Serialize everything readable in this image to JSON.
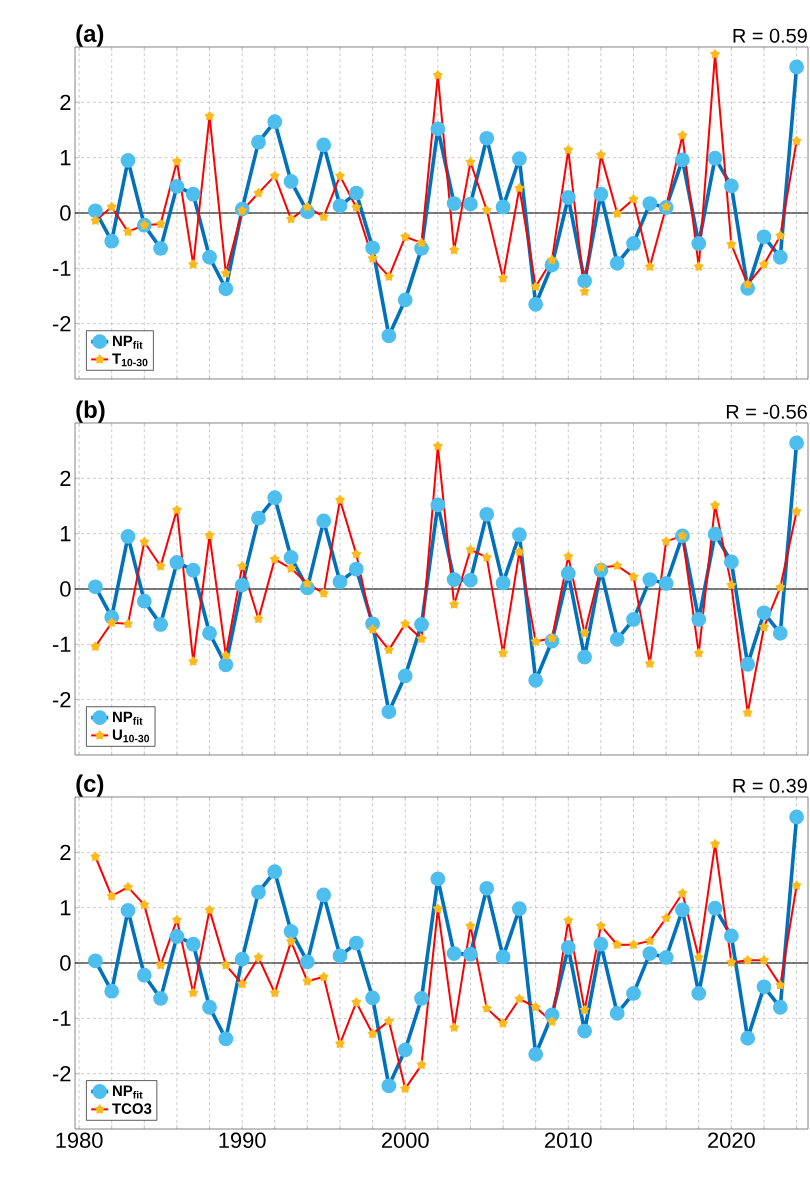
{
  "chart_data": [
    {
      "type": "line",
      "title": "(a)",
      "annotations": [
        "R = 0.59"
      ],
      "x": [
        1981,
        1982,
        1983,
        1984,
        1985,
        1986,
        1987,
        1988,
        1989,
        1990,
        1991,
        1992,
        1993,
        1994,
        1995,
        1996,
        1997,
        1998,
        1999,
        2000,
        2001,
        2002,
        2003,
        2004,
        2005,
        2006,
        2007,
        2008,
        2009,
        2010,
        2011,
        2012,
        2013,
        2014,
        2015,
        2016,
        2017,
        2018,
        2019,
        2020,
        2021,
        2022,
        2023,
        2024
      ],
      "xlim": [
        1979.75,
        2024.7
      ],
      "ylim": [
        -3,
        3
      ],
      "xticks": [
        1980,
        {
          "value": 1982,
          "label": null
        },
        {
          "value": 1984,
          "label": null
        },
        {
          "value": 1986,
          "label": null
        },
        {
          "value": 1988,
          "label": null
        },
        1990,
        {
          "value": 1992,
          "label": null
        },
        {
          "value": 1994,
          "label": null
        },
        {
          "value": 1996,
          "label": null
        },
        {
          "value": 1998,
          "label": null
        },
        2000,
        {
          "value": 2002,
          "label": null
        },
        {
          "value": 2004,
          "label": null
        },
        {
          "value": 2006,
          "label": null
        },
        {
          "value": 2008,
          "label": null
        },
        2010,
        {
          "value": 2012,
          "label": null
        },
        {
          "value": 2014,
          "label": null
        },
        {
          "value": 2016,
          "label": null
        },
        {
          "value": 2018,
          "label": null
        },
        2020,
        {
          "value": 2022,
          "label": null
        },
        {
          "value": 2024,
          "label": null
        }
      ],
      "yticks": [
        -2,
        -1,
        0,
        1,
        2
      ],
      "grid": true,
      "legend": "bottom left",
      "tick_labels": "y",
      "ref_lines": [
        {
          "axis": "y",
          "value": 0
        }
      ],
      "series": [
        {
          "name": "NP$_{fit}$",
          "color": "#0072bd",
          "marker": "circle",
          "values": [
            0.04,
            -0.51,
            0.95,
            -0.22,
            -0.64,
            0.48,
            0.34,
            -0.8,
            -1.37,
            0.07,
            1.28,
            1.65,
            0.57,
            0.02,
            1.23,
            0.13,
            0.36,
            -0.63,
            -2.22,
            -1.57,
            -0.64,
            1.52,
            0.17,
            0.16,
            1.35,
            0.11,
            0.98,
            -1.65,
            -0.94,
            0.28,
            -1.23,
            0.34,
            -0.91,
            -0.55,
            0.17,
            0.1,
            0.96,
            -0.55,
            0.99,
            0.49,
            -1.36,
            -0.43,
            -0.8,
            2.64
          ]
        },
        {
          "name": "T$_{10-30}$",
          "color": "#ff0000",
          "marker": "star",
          "values": [
            -0.14,
            0.11,
            -0.34,
            -0.22,
            -0.2,
            0.93,
            -0.93,
            1.75,
            -1.09,
            0.04,
            0.36,
            0.67,
            -0.11,
            0.11,
            -0.07,
            0.67,
            0.1,
            -0.82,
            -1.15,
            -0.43,
            -0.54,
            2.49,
            -0.67,
            0.92,
            0.05,
            -1.18,
            0.45,
            -1.33,
            -0.85,
            1.14,
            -1.42,
            1.05,
            -0.01,
            0.25,
            -0.97,
            0.11,
            1.4,
            -0.97,
            2.87,
            -0.57,
            -1.29,
            -0.93,
            -0.41,
            1.3
          ]
        }
      ]
    },
    {
      "type": "line",
      "title": "(b)",
      "annotations": [
        "R = -0.56"
      ],
      "x": [
        1981,
        1982,
        1983,
        1984,
        1985,
        1986,
        1987,
        1988,
        1989,
        1990,
        1991,
        1992,
        1993,
        1994,
        1995,
        1996,
        1997,
        1998,
        1999,
        2000,
        2001,
        2002,
        2003,
        2004,
        2005,
        2006,
        2007,
        2008,
        2009,
        2010,
        2011,
        2012,
        2013,
        2014,
        2015,
        2016,
        2017,
        2018,
        2019,
        2020,
        2021,
        2022,
        2023,
        2024
      ],
      "xlim": [
        1979.75,
        2024.7
      ],
      "ylim": [
        -3,
        3
      ],
      "xticks": [
        1980,
        {
          "value": 1982,
          "label": null
        },
        {
          "value": 1984,
          "label": null
        },
        {
          "value": 1986,
          "label": null
        },
        {
          "value": 1988,
          "label": null
        },
        1990,
        {
          "value": 1992,
          "label": null
        },
        {
          "value": 1994,
          "label": null
        },
        {
          "value": 1996,
          "label": null
        },
        {
          "value": 1998,
          "label": null
        },
        2000,
        {
          "value": 2002,
          "label": null
        },
        {
          "value": 2004,
          "label": null
        },
        {
          "value": 2006,
          "label": null
        },
        {
          "value": 2008,
          "label": null
        },
        2010,
        {
          "value": 2012,
          "label": null
        },
        {
          "value": 2014,
          "label": null
        },
        {
          "value": 2016,
          "label": null
        },
        {
          "value": 2018,
          "label": null
        },
        2020,
        {
          "value": 2022,
          "label": null
        },
        {
          "value": 2024,
          "label": null
        }
      ],
      "yticks": [
        -2,
        -1,
        0,
        1,
        2
      ],
      "grid": true,
      "legend": "bottom left",
      "tick_labels": "y",
      "ref_lines": [
        {
          "axis": "y",
          "value": 0
        }
      ],
      "series": [
        {
          "name": "NP$_{fit}$",
          "color": "#0072bd",
          "marker": "circle",
          "values": [
            0.04,
            -0.51,
            0.95,
            -0.22,
            -0.64,
            0.48,
            0.34,
            -0.8,
            -1.37,
            0.07,
            1.28,
            1.65,
            0.57,
            0.02,
            1.23,
            0.13,
            0.36,
            -0.63,
            -2.22,
            -1.57,
            -0.64,
            1.52,
            0.17,
            0.16,
            1.35,
            0.11,
            0.98,
            -1.65,
            -0.94,
            0.28,
            -1.23,
            0.34,
            -0.91,
            -0.55,
            0.17,
            0.1,
            0.96,
            -0.55,
            0.99,
            0.49,
            -1.36,
            -0.43,
            -0.8,
            2.64
          ]
        },
        {
          "name": "U$_{10-30}$",
          "color": "#ff0000",
          "marker": "star",
          "values": [
            -1.04,
            -0.61,
            -0.63,
            0.85,
            0.41,
            1.43,
            -1.31,
            0.97,
            -1.2,
            0.41,
            -0.54,
            0.54,
            0.37,
            0.1,
            -0.08,
            1.61,
            0.63,
            -0.73,
            -1.1,
            -0.63,
            -0.9,
            2.58,
            -0.28,
            0.71,
            0.57,
            -1.16,
            0.67,
            -0.95,
            -0.89,
            0.59,
            -0.8,
            0.39,
            0.42,
            0.22,
            -1.35,
            0.86,
            0.96,
            -1.16,
            1.51,
            0.07,
            -2.24,
            -0.69,
            0.03,
            1.4
          ]
        }
      ]
    },
    {
      "type": "line",
      "title": "(c)",
      "annotations": [
        "R = 0.39"
      ],
      "x": [
        1981,
        1982,
        1983,
        1984,
        1985,
        1986,
        1987,
        1988,
        1989,
        1990,
        1991,
        1992,
        1993,
        1994,
        1995,
        1996,
        1997,
        1998,
        1999,
        2000,
        2001,
        2002,
        2003,
        2004,
        2005,
        2006,
        2007,
        2008,
        2009,
        2010,
        2011,
        2012,
        2013,
        2014,
        2015,
        2016,
        2017,
        2018,
        2019,
        2020,
        2021,
        2022,
        2023,
        2024
      ],
      "xlim": [
        1979.75,
        2024.7
      ],
      "ylim": [
        -3,
        3
      ],
      "xticks": [
        1980,
        {
          "value": 1982,
          "label": null
        },
        {
          "value": 1984,
          "label": null
        },
        {
          "value": 1986,
          "label": null
        },
        {
          "value": 1988,
          "label": null
        },
        1990,
        {
          "value": 1992,
          "label": null
        },
        {
          "value": 1994,
          "label": null
        },
        {
          "value": 1996,
          "label": null
        },
        {
          "value": 1998,
          "label": null
        },
        2000,
        {
          "value": 2002,
          "label": null
        },
        {
          "value": 2004,
          "label": null
        },
        {
          "value": 2006,
          "label": null
        },
        {
          "value": 2008,
          "label": null
        },
        2010,
        {
          "value": 2012,
          "label": null
        },
        {
          "value": 2014,
          "label": null
        },
        {
          "value": 2016,
          "label": null
        },
        {
          "value": 2018,
          "label": null
        },
        2020,
        {
          "value": 2022,
          "label": null
        },
        {
          "value": 2024,
          "label": null
        }
      ],
      "yticks": [
        -2,
        -1,
        0,
        1,
        2
      ],
      "grid": true,
      "legend": "bottom left",
      "ref_lines": [
        {
          "axis": "y",
          "value": 0
        }
      ],
      "series": [
        {
          "name": "NP$_{fit}$",
          "color": "#0072bd",
          "marker": "circle",
          "values": [
            0.04,
            -0.51,
            0.95,
            -0.22,
            -0.64,
            0.48,
            0.34,
            -0.8,
            -1.37,
            0.07,
            1.28,
            1.65,
            0.57,
            0.02,
            1.23,
            0.13,
            0.36,
            -0.63,
            -2.22,
            -1.57,
            -0.64,
            1.52,
            0.17,
            0.16,
            1.35,
            0.11,
            0.98,
            -1.65,
            -0.94,
            0.28,
            -1.23,
            0.34,
            -0.91,
            -0.55,
            0.17,
            0.1,
            0.96,
            -0.55,
            0.99,
            0.49,
            -1.36,
            -0.43,
            -0.8,
            2.64
          ]
        },
        {
          "name": "TCO3",
          "color": "#ff0000",
          "marker": "star",
          "values": [
            1.92,
            1.21,
            1.37,
            1.05,
            -0.04,
            0.78,
            -0.54,
            0.96,
            -0.04,
            -0.38,
            0.1,
            -0.54,
            0.39,
            -0.33,
            -0.25,
            -1.46,
            -0.71,
            -1.28,
            -1.05,
            -2.27,
            -1.84,
            0.98,
            -1.17,
            0.67,
            -0.82,
            -1.09,
            -0.65,
            -0.8,
            -1.06,
            0.77,
            -0.85,
            0.67,
            0.33,
            0.33,
            0.4,
            0.81,
            1.26,
            0.1,
            2.15,
            0.01,
            0.05,
            0.05,
            -0.4,
            1.4
          ]
        }
      ]
    }
  ]
}
